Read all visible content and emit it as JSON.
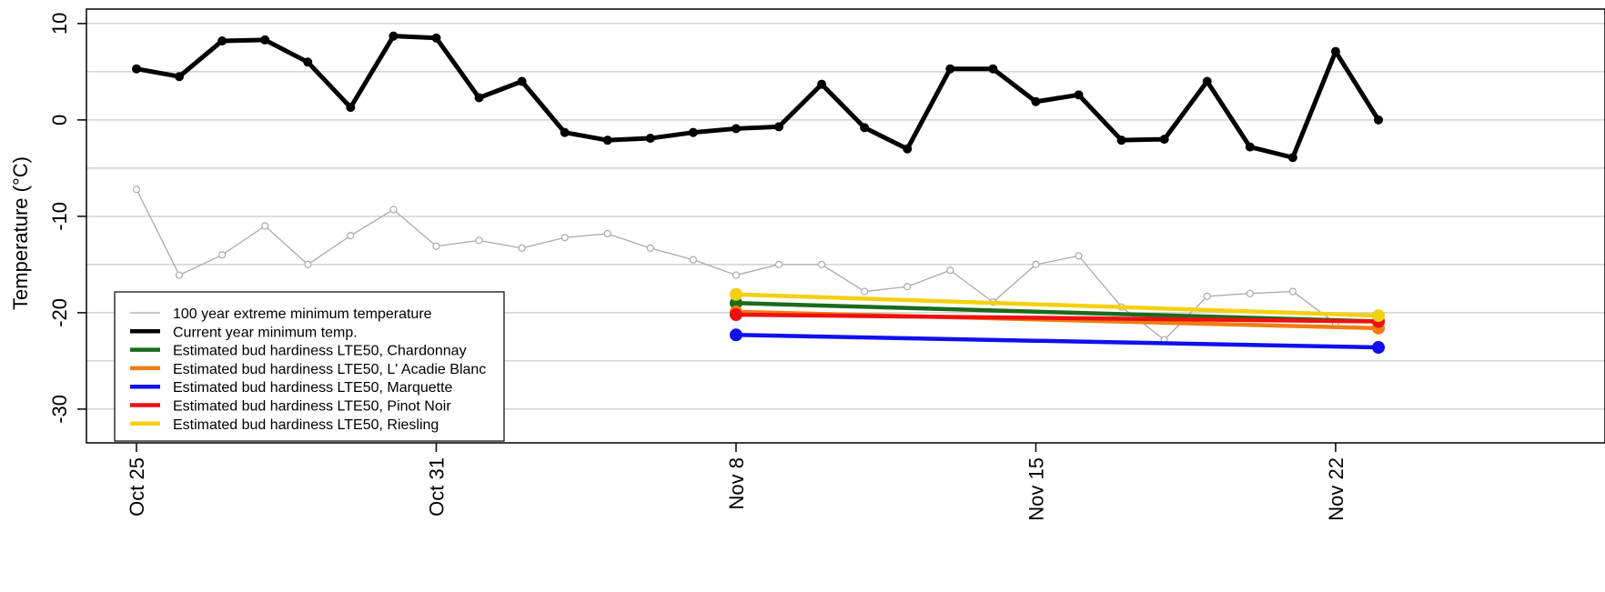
{
  "chart_data": {
    "type": "line",
    "ylabel": "Temperature (°C)",
    "ylim": [
      -33.5,
      11.5
    ],
    "xlim_days": [
      -1,
      30
    ],
    "x_ticks": [
      {
        "label": "Oct 25",
        "day": 0
      },
      {
        "label": "Oct 31",
        "day": 7
      },
      {
        "label": "Nov 8",
        "day": 14
      },
      {
        "label": "Nov 15",
        "day": 21
      },
      {
        "label": "Nov 22",
        "day": 28
      }
    ],
    "y_ticks": [
      10,
      0,
      -10,
      -20,
      -30
    ],
    "grid": true,
    "gridlines": [
      10,
      5,
      0,
      -5,
      -10,
      -15,
      -20,
      -25,
      -30
    ],
    "legend_position": "bottom-left",
    "series": [
      {
        "name": "100 year extreme minimum temperature",
        "color": "#aaaaaa",
        "style": "thin-open-points",
        "x": [
          0,
          1,
          2,
          3,
          4,
          5,
          6,
          7,
          8,
          9,
          10,
          11,
          12,
          13,
          14,
          15,
          16,
          17,
          18,
          19,
          20,
          21,
          22,
          23,
          24,
          25,
          26,
          27,
          28
        ],
        "y": [
          -7.2,
          -16.1,
          -14.0,
          -11.0,
          -15.0,
          -12.0,
          -9.3,
          -13.1,
          -12.5,
          -13.3,
          -12.2,
          -11.8,
          -13.3,
          -14.5,
          -16.1,
          -15.0,
          -15.0,
          -17.8,
          -17.3,
          -15.6,
          -18.9,
          -15.0,
          -14.1,
          -19.4,
          -22.8,
          -18.3,
          -18.0,
          -17.8,
          -21.1
        ]
      },
      {
        "name": "Current year minimum temp.",
        "color": "#000000",
        "style": "thick-filled-points",
        "x": [
          0,
          1,
          2,
          3,
          4,
          5,
          6,
          7,
          8,
          9,
          10,
          11,
          12,
          13,
          14,
          15,
          16,
          17,
          18,
          19,
          20,
          21,
          22,
          23,
          24,
          25,
          26,
          27,
          28,
          29
        ],
        "y": [
          5.3,
          4.5,
          8.2,
          8.3,
          6.0,
          1.3,
          8.7,
          8.5,
          2.3,
          4.0,
          -1.3,
          -2.1,
          -1.9,
          -1.3,
          -0.9,
          -0.7,
          3.7,
          -0.8,
          -3.0,
          5.3,
          5.3,
          1.9,
          2.6,
          -2.1,
          -2.0,
          4.0,
          -2.8,
          -3.9,
          7.1,
          0.0
        ]
      },
      {
        "name": "Estimated bud hardiness LTE50, Chardonnay",
        "color": "#1a6b1a",
        "style": "thick-endpoints",
        "x": [
          14,
          29
        ],
        "y": [
          -19.0,
          -20.9
        ]
      },
      {
        "name": "Estimated bud hardiness LTE50, L' Acadie Blanc",
        "color": "#f07d12",
        "style": "thick-endpoints",
        "x": [
          14,
          29
        ],
        "y": [
          -19.9,
          -21.6
        ]
      },
      {
        "name": "Estimated bud hardiness LTE50, Marquette",
        "color": "#1010ee",
        "style": "thick-endpoints",
        "x": [
          14,
          29
        ],
        "y": [
          -22.3,
          -23.6
        ]
      },
      {
        "name": "Estimated bud hardiness LTE50, Pinot Noir",
        "color": "#ee1010",
        "style": "thick-endpoints",
        "x": [
          14,
          29
        ],
        "y": [
          -20.2,
          -20.9
        ]
      },
      {
        "name": "Estimated bud hardiness LTE50, Riesling",
        "color": "#f5d010",
        "style": "thick-endpoints",
        "x": [
          14,
          29
        ],
        "y": [
          -18.1,
          -20.3
        ]
      }
    ]
  }
}
